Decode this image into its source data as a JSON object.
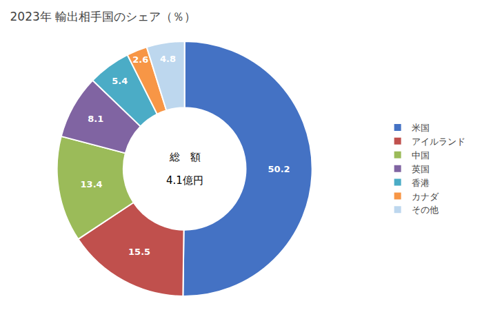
{
  "chart_data": {
    "type": "donut",
    "title": "2023年 輸出相手国のシェア（％）",
    "annotations": [
      "総　額",
      "4.1億円"
    ],
    "categories": [
      "米国",
      "アイルランド",
      "中国",
      "英国",
      "香港",
      "カナダ",
      "その他"
    ],
    "values": [
      50.2,
      15.5,
      13.4,
      8.1,
      5.4,
      2.6,
      4.8
    ],
    "colors": [
      "#4472C4",
      "#C0504D",
      "#9BBB59",
      "#8064A2",
      "#4BACC6",
      "#F79646",
      "#BDD7EE"
    ],
    "data_labels": true,
    "legend": "right"
  }
}
